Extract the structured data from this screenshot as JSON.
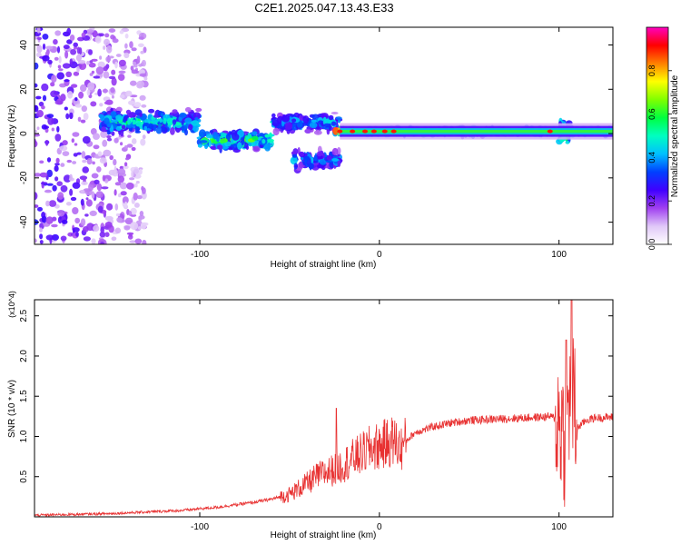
{
  "figure_title": "C2E1.2025.047.13.43.E33",
  "chart_data": [
    {
      "type": "heatmap",
      "title": "",
      "xlabel": "Height of straight line (km)",
      "ylabel": "Frequency (Hz)",
      "xlim": [
        -192,
        130
      ],
      "ylim": [
        -50,
        48
      ],
      "x_ticks": [
        -100,
        0,
        100
      ],
      "y_ticks": [
        -40,
        -20,
        0,
        20,
        40
      ],
      "x_tick_labels": [
        "-100",
        "0",
        "100"
      ],
      "y_tick_labels": [
        "-40",
        "-20",
        "0",
        "20",
        "40"
      ],
      "colorbar": {
        "label": "Normalized spectral amplitude",
        "range": [
          0,
          1
        ],
        "ticks": [
          0.0,
          0.2,
          0.4,
          0.6,
          0.8
        ],
        "tick_labels": [
          "0.0",
          "0.2",
          "0.4",
          "0.6",
          "0.8"
        ],
        "colormap": [
          "#ffffff",
          "#e0c8f8",
          "#a040f0",
          "#4000ff",
          "#0040ff",
          "#00c0ff",
          "#00ffc0",
          "#00ff40",
          "#80ff00",
          "#ffff00",
          "#ff8000",
          "#ff0000",
          "#ff00c0"
        ]
      },
      "features": [
        {
          "x_range": [
            -192,
            -130
          ],
          "freq_range": [
            -50,
            48
          ],
          "amplitude": 0.1,
          "kind": "diffuse noise"
        },
        {
          "x_range": [
            -155,
            -100
          ],
          "freq_center": 5,
          "freq_width": 7,
          "amplitude": 0.4
        },
        {
          "x_range": [
            -100,
            -60
          ],
          "freq_center": -3,
          "freq_width": 6,
          "amplitude": 0.45
        },
        {
          "x_range": [
            -60,
            -22
          ],
          "freq_center": 5,
          "freq_width": 5,
          "amplitude": 0.35
        },
        {
          "x_range": [
            -48,
            -22
          ],
          "freq_center": -12,
          "freq_width": 6,
          "amplitude": 0.3
        },
        {
          "x_range": [
            -22,
            130
          ],
          "freq_center": 1,
          "freq_width": 2,
          "amplitude": 0.6
        },
        {
          "x_range": [
            -25,
            10
          ],
          "freq_center": 1,
          "freq_width": 1,
          "amplitude": 0.95
        },
        {
          "x_range": [
            100,
            106
          ],
          "freq_center": 0,
          "freq_width": 10,
          "amplitude": 0.5
        }
      ]
    },
    {
      "type": "line",
      "title": "",
      "xlabel": "Height of straight line (km)",
      "ylabel": "SNR (10 * v/v)",
      "y_scale_note": "(x10^4)",
      "xlim": [
        -192,
        130
      ],
      "ylim": [
        0,
        2.7
      ],
      "x_ticks": [
        -100,
        0,
        100
      ],
      "y_ticks": [
        0.5,
        1.0,
        1.5,
        2.0,
        2.5
      ],
      "x_tick_labels": [
        "-100",
        "0",
        "100"
      ],
      "y_tick_labels": [
        "0.5",
        "1.0",
        "1.5",
        "2.0",
        "2.5"
      ],
      "line_color": "#e83232",
      "series": [
        {
          "x": [
            -192,
            -170,
            -150,
            -130,
            -110,
            -90,
            -80,
            -70,
            -60,
            -50,
            -45,
            -40,
            -35,
            -30,
            -26,
            -24,
            -22,
            -18,
            -15,
            -10,
            -5,
            0,
            5,
            8,
            10,
            12,
            15,
            20,
            30,
            40,
            50,
            60,
            70,
            80,
            90,
            95,
            100,
            102,
            104,
            105,
            106,
            107,
            108,
            110,
            115,
            120,
            130
          ],
          "y": [
            0.02,
            0.03,
            0.04,
            0.06,
            0.08,
            0.12,
            0.15,
            0.18,
            0.22,
            0.28,
            0.35,
            0.42,
            0.5,
            0.55,
            0.58,
            0.6,
            0.62,
            0.68,
            0.72,
            0.78,
            0.85,
            0.88,
            0.92,
            0.95,
            0.9,
            0.85,
            0.95,
            1.05,
            1.12,
            1.17,
            1.2,
            1.21,
            1.22,
            1.23,
            1.24,
            1.25,
            1.2,
            1.1,
            0.9,
            1.3,
            1.5,
            1.7,
            1.4,
            1.1,
            1.2,
            1.23,
            1.24
          ]
        }
      ],
      "peaks": [
        {
          "x": -24,
          "y": 1.35
        },
        {
          "x": 104,
          "y": 2.2
        },
        {
          "x": 107,
          "y": 2.7
        }
      ]
    }
  ]
}
